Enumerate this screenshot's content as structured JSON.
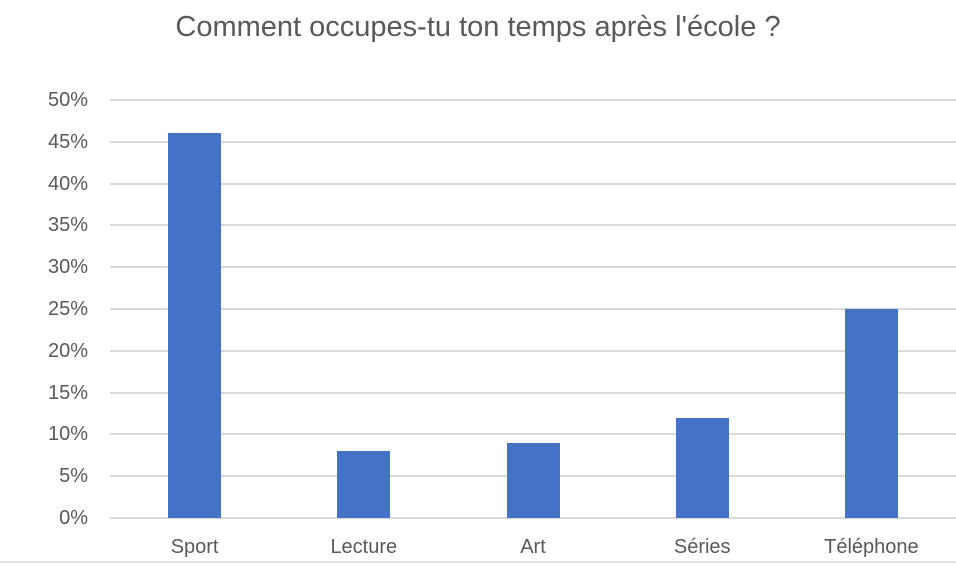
{
  "chart_data": {
    "type": "bar",
    "title": "Comment occupes-tu ton temps après l'école ?",
    "categories": [
      "Sport",
      "Lecture",
      "Art",
      "Séries",
      "Téléphone"
    ],
    "values": [
      46,
      8,
      9,
      12,
      25
    ],
    "unit": "%",
    "xlabel": "",
    "ylabel": "",
    "ylim": [
      0,
      50
    ],
    "ytick_step": 5,
    "ytick_labels": [
      "0%",
      "5%",
      "10%",
      "15%",
      "20%",
      "25%",
      "30%",
      "35%",
      "40%",
      "45%",
      "50%"
    ],
    "grid": true,
    "legend": "none",
    "bar_color": "#4472C4",
    "gridline_color": "#D9D9D9",
    "axis_text_color": "#595959",
    "title_color": "#595959",
    "background_color": "#FFFFFF"
  }
}
